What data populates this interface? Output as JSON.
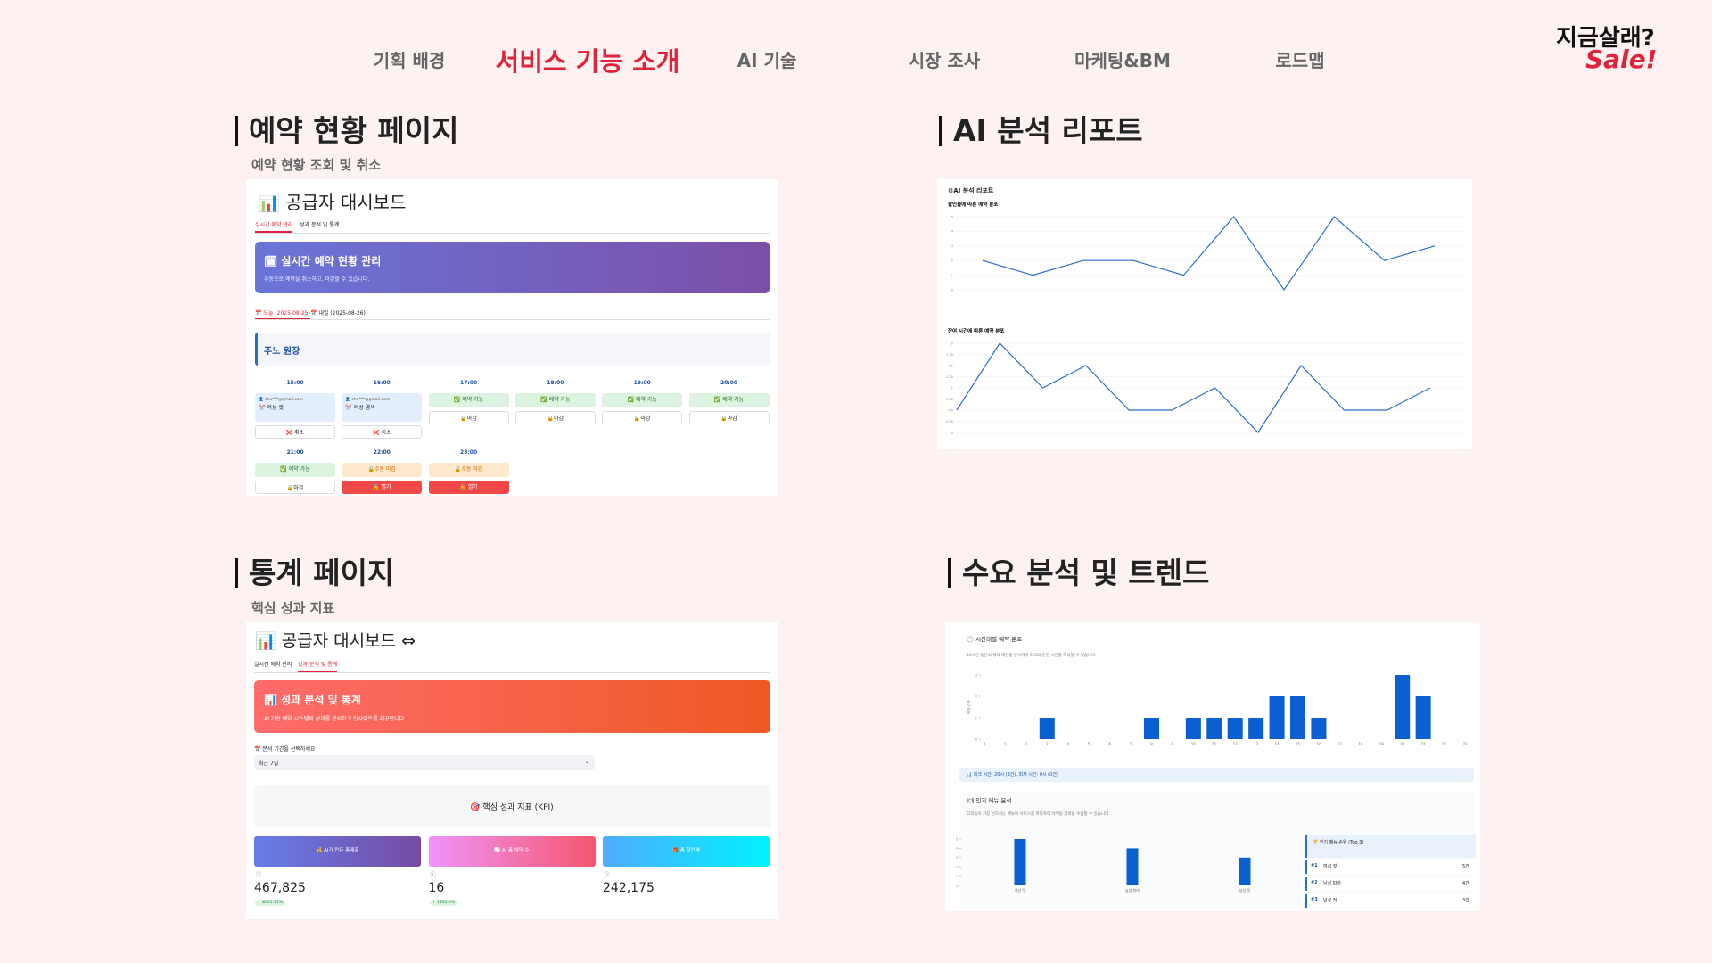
{
  "nav": {
    "items": [
      "기획 배경",
      "서비스 기능 소개",
      "AI 기술",
      "시장 조사",
      "마케팅&BM",
      "로드맵"
    ],
    "active": 1
  },
  "logo": {
    "line1": "지금살래?",
    "line2": "Sale!"
  },
  "panels": [
    {
      "title": "예약 현황 페이지",
      "subtitle": "예약 현황 조회 및 취소",
      "shot": {
        "header": "📊 공급자 대시보드",
        "tabs": [
          "실시간 예약 관리",
          "성과 분석 및 통계"
        ],
        "banner_title": "🗓 실시간 예약 현황 관리",
        "banner_desc": "수동으로 예약을 취소하고, 마감할 수 있습니다.",
        "date_tabs": [
          "📅 오늘 (2025-08-25)",
          "📅 내일 (2025-08-26)"
        ],
        "store": "주노 원장",
        "slots": [
          {
            "time": "15:00",
            "state": "booked",
            "email": "👤 chu***@gmail.com",
            "service": "✂️ 여성 컷",
            "action": "❌ 취소"
          },
          {
            "time": "16:00",
            "state": "booked",
            "email": "👤 cho***@gmail.com",
            "service": "✂️ 여성 염색",
            "action": "❌ 취소"
          },
          {
            "time": "17:00",
            "state": "open",
            "status": "✅ 예약 가능",
            "action": "🔒마감"
          },
          {
            "time": "18:00",
            "state": "open",
            "status": "✅ 예약 가능",
            "action": "🔒마감"
          },
          {
            "time": "19:00",
            "state": "open",
            "status": "✅ 예약 가능",
            "action": "🔒마감"
          },
          {
            "time": "20:00",
            "state": "open",
            "status": "✅ 예약 가능",
            "action": "🔒마감"
          },
          {
            "time": "21:00",
            "state": "open",
            "status": "✅ 예약 가능",
            "action": "🔒마감"
          },
          {
            "time": "22:00",
            "state": "closed",
            "status": "🔒수동 마감",
            "action": "🔓 열기"
          },
          {
            "time": "23:00",
            "state": "closed",
            "status": "🔒수동 마감",
            "action": "🔓 열기"
          }
        ]
      }
    },
    {
      "title": "AI 분석 리포트",
      "shot": {
        "header": "⚙AI 분석 리포트",
        "charts": [
          {
            "type": "line",
            "title": "할인율에 따른 예약 분포",
            "values": [
              2,
              1,
              2,
              2,
              1,
              5,
              0,
              5,
              2,
              3
            ],
            "ylim": [
              0,
              5
            ],
            "yticks": [
              0,
              1,
              2,
              3,
              4,
              5
            ],
            "color": "#2a6fc9",
            "grid": true
          },
          {
            "type": "line",
            "title": "잔여 시간에 따른 예약 분포",
            "values": [
              0.5,
              2,
              1,
              1.5,
              0.5,
              0.5,
              1,
              0,
              1.5,
              0.5,
              0.5,
              1
            ],
            "ylim": [
              0,
              2
            ],
            "yticks": [
              0,
              0.25,
              0.5,
              0.75,
              1,
              1.25,
              1.5,
              1.75,
              2
            ],
            "color": "#2a6fc9",
            "grid": true
          }
        ]
      }
    },
    {
      "title": "통계 페이지",
      "subtitle": "핵심 성과 지표",
      "shot": {
        "header": "📊 공급자 대시보드 ⇔",
        "tabs": [
          "실시간 예약 관리",
          "성과 분석 및 통계"
        ],
        "banner_title": "📊 성과 분석 및 통계",
        "banner_desc": "AI 기반 예약 시스템의 성과를 분석하고 인사이트를 제공합니다.",
        "period_label": "📅 분석 기간을 선택하세요",
        "period": "최근 7일",
        "kpi_title": "🎯 핵심 성과 지표 (KPI)",
        "kpis": [
          {
            "label": "💰 AI가 만든 총매출",
            "value": "467,825",
            "delta": "↑ 8405.91%"
          },
          {
            "label": "📈 AI 총 예약 수",
            "value": "16",
            "delta": "↑ 1500.0%"
          },
          {
            "label": "🎁 총 할인액",
            "value": "242,175"
          }
        ]
      }
    },
    {
      "title": "수요 분석 및 트렌드",
      "shot": {
        "header": "🕐 시간대별 예약 분포",
        "desc": "24시간 동안의 예약 패턴을 분석하여 최적의 운영 시간을 파악할 수 있습니다.",
        "charts": [
          {
            "type": "bar",
            "ylabel": "예약 건수",
            "categories": [
              0,
              1,
              2,
              3,
              4,
              5,
              6,
              7,
              8,
              9,
              10,
              11,
              12,
              13,
              14,
              15,
              16,
              17,
              18,
              19,
              20,
              21,
              22,
              23
            ],
            "values": [
              0,
              0,
              0,
              1,
              0,
              0,
              0,
              0,
              1,
              0,
              1,
              1,
              1,
              1,
              2,
              2,
              1,
              0,
              0,
              0,
              3,
              2,
              0,
              0
            ],
            "ylim": [
              0,
              3
            ],
            "yticks": [
              0,
              1,
              2,
              3
            ],
            "color": "#0a5fd1"
          },
          {
            "type": "bar",
            "categories": [
              "여성 컷",
              "남성 파마",
              "남성 컷"
            ],
            "values": [
              5,
              4,
              3
            ],
            "ylim": [
              0,
              5
            ],
            "yticks": [
              0,
              1,
              2,
              3,
              4,
              5
            ],
            "color": "#0a5fd1"
          }
        ],
        "peak_info": "📊 피크 시간: 20시 (3건), 최저 시간: 0시 (0건)",
        "menu_title": "🍽 인기 메뉴 분석",
        "menu_desc": "고객들이 가장 선호하는 메뉴와 서비스를 파악하여 마케팅 전략을 수립할 수 있습니다.",
        "ranking_title": "🏆 인기 메뉴 순위 (Top 3)",
        "ranking": [
          [
            "#1",
            "여성 컷",
            "5건"
          ],
          [
            "#2",
            "남성 파마",
            "4건"
          ],
          [
            "#3",
            "남성 컷",
            "3건"
          ]
        ]
      }
    }
  ]
}
